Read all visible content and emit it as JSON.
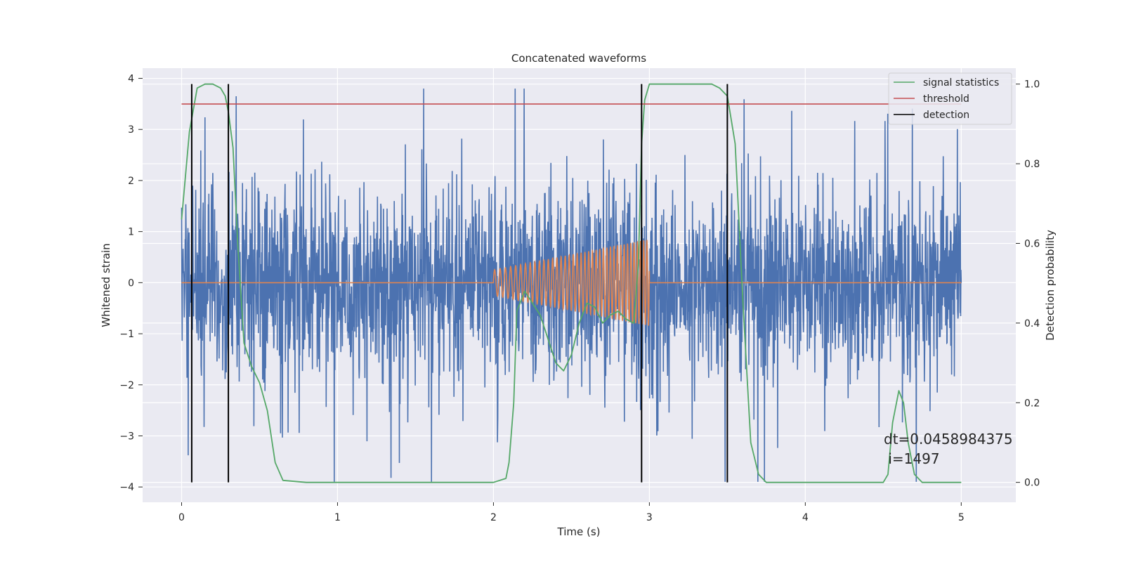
{
  "chart_data": {
    "type": "line",
    "title": "Concatenated waveforms",
    "xlabel": "Time (s)",
    "ylabel": "Whitened strain",
    "y2label": "Detection probability",
    "xlim": [
      -0.25,
      5.35
    ],
    "ylim": [
      -4.3,
      4.2
    ],
    "y2lim": [
      -0.05,
      1.04
    ],
    "xticks": [
      0,
      1,
      2,
      3,
      4,
      5
    ],
    "yticks": [
      -4,
      -3,
      -2,
      -1,
      0,
      1,
      2,
      3,
      4
    ],
    "y2ticks": [
      0.0,
      0.2,
      0.4,
      0.6,
      0.8,
      1.0
    ],
    "xtick_labels": [
      "0",
      "1",
      "2",
      "3",
      "4",
      "5"
    ],
    "ytick_labels": [
      "−4",
      "−3",
      "−2",
      "−1",
      "0",
      "1",
      "2",
      "3",
      "4"
    ],
    "y2tick_labels": [
      "0.0",
      "0.2",
      "0.4",
      "0.6",
      "0.8",
      "1.0"
    ],
    "grid": true,
    "legend_position": "top-right",
    "colors": {
      "background": "#eaeaf2",
      "strain": "#4c72b0",
      "template": "#dd8452",
      "signal_statistics": "#55a868",
      "threshold": "#c44e52",
      "detection": "#000000"
    },
    "series": [
      {
        "name": "signal statistics",
        "axis": "right",
        "x": [
          0.0,
          0.05,
          0.1,
          0.15,
          0.2,
          0.25,
          0.28,
          0.3,
          0.33,
          0.36,
          0.4,
          0.45,
          0.5,
          0.55,
          0.6,
          0.65,
          0.8,
          1.5,
          2.0,
          2.08,
          2.1,
          2.13,
          2.15,
          2.2,
          2.3,
          2.4,
          2.45,
          2.5,
          2.55,
          2.6,
          2.65,
          2.7,
          2.75,
          2.8,
          2.85,
          2.9,
          2.93,
          2.95,
          2.97,
          3.0,
          3.2,
          3.4,
          3.45,
          3.5,
          3.55,
          3.6,
          3.65,
          3.7,
          3.75,
          3.85,
          4.5,
          4.53,
          4.56,
          4.6,
          4.63,
          4.66,
          4.7,
          4.75,
          5.0
        ],
        "values": [
          0.66,
          0.88,
          0.99,
          1.0,
          1.0,
          0.99,
          0.97,
          0.93,
          0.84,
          0.6,
          0.35,
          0.29,
          0.25,
          0.18,
          0.05,
          0.005,
          0.0,
          0.0,
          0.0,
          0.01,
          0.05,
          0.2,
          0.43,
          0.48,
          0.42,
          0.3,
          0.28,
          0.32,
          0.4,
          0.45,
          0.44,
          0.4,
          0.42,
          0.43,
          0.41,
          0.4,
          0.55,
          0.85,
          0.96,
          1.0,
          1.0,
          1.0,
          0.99,
          0.97,
          0.85,
          0.45,
          0.1,
          0.02,
          0.0,
          0.0,
          0.0,
          0.02,
          0.15,
          0.23,
          0.2,
          0.1,
          0.02,
          0.0,
          0.0
        ]
      },
      {
        "name": "threshold",
        "axis": "right",
        "x": [
          0,
          5
        ],
        "values": [
          0.95,
          0.95
        ]
      },
      {
        "name": "detection",
        "axis": "right",
        "x_positions": [
          0.065,
          0.3,
          2.95,
          3.5
        ],
        "y_range": [
          0,
          1
        ]
      }
    ],
    "unlabeled_series": [
      {
        "color": "strain",
        "description_kind": "noise",
        "x_range": [
          0,
          5
        ],
        "envelope": 0.9,
        "spike_max": 3.8,
        "axis": "left"
      },
      {
        "color": "template",
        "description_kind": "chirp",
        "x_range": [
          2.0,
          3.0
        ],
        "amplitude_start": 0.25,
        "amplitude_end": 0.85,
        "frequency_start": 28,
        "frequency_end": 50,
        "axis": "left"
      }
    ],
    "annotation": {
      "lines": [
        "dt=0.0458984375",
        " i=1497"
      ]
    }
  }
}
